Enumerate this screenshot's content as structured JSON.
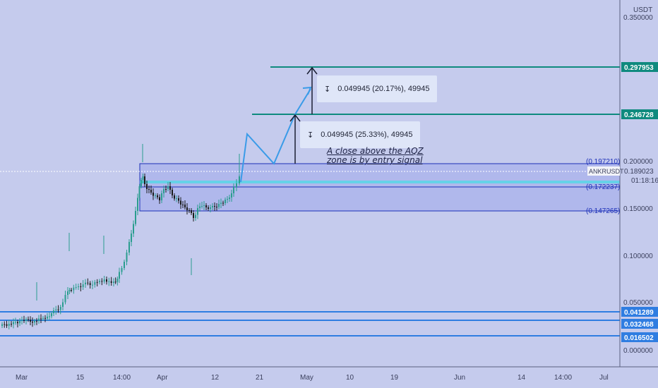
{
  "symbol": "ANKRUSDT",
  "currency": "USDT",
  "current_price": "0.189023",
  "countdown": "01:18:16",
  "price_ticks": [
    "0.350000",
    "0.200000",
    "0.150000",
    "0.100000",
    "0.050000",
    "0.000000"
  ],
  "x_ticks": [
    "Mar",
    "15",
    "14:00",
    "Apr",
    "12",
    "21",
    "May",
    "10",
    "19",
    "Jun",
    "14",
    "14:00",
    "Jul"
  ],
  "levels": {
    "tp2": "0.297953",
    "tp1": "0.246728",
    "support1": "0.041289",
    "support2": "0.032468",
    "support3": "0.016502"
  },
  "zone_labels": {
    "top": "(0.197210)",
    "mid": "(0.172237)",
    "bottom": "(0.147265)"
  },
  "measure_labels": {
    "upper": "0.049945 (20.17%), 49945",
    "lower": "0.049945 (25.33%), 49945"
  },
  "annotation": {
    "line1": "A close above the AQZ",
    "line2": "zone is by entry signal"
  },
  "colors": {
    "background": "#c5cbed",
    "target_line": "#0f8a7e",
    "support_line": "#2f7de1",
    "zone_border": "#1c2fb8",
    "zone_fill": "#b0b8ec",
    "path_arrow": "#3a9be8",
    "candle_up": "#2a9d8f",
    "candle_down": "#1b1b1b"
  },
  "chart_data": {
    "type": "candlestick",
    "symbol": "ANKRUSDT",
    "ylim": [
      0.0,
      0.36
    ],
    "horizontal_levels": [
      0.297953,
      0.246728,
      0.041289,
      0.032468,
      0.016502
    ],
    "zone": {
      "top": 0.19721,
      "mid": 0.172237,
      "bottom": 0.147265
    },
    "current_price": 0.189023
  }
}
